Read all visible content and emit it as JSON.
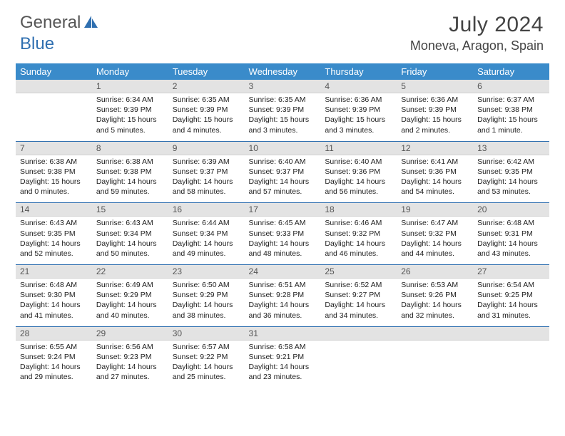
{
  "logo": {
    "part1": "General",
    "part2": "Blue"
  },
  "title": {
    "month": "July 2024",
    "location": "Moneva, Aragon, Spain"
  },
  "weekdays": [
    "Sunday",
    "Monday",
    "Tuesday",
    "Wednesday",
    "Thursday",
    "Friday",
    "Saturday"
  ],
  "colors": {
    "header_bg": "#3a8bca",
    "accent": "#2f6fb0",
    "daynum_bg": "#e3e3e3"
  },
  "weeks": [
    [
      {
        "n": "",
        "sunrise": "",
        "sunset": "",
        "daylight": ""
      },
      {
        "n": "1",
        "sunrise": "Sunrise: 6:34 AM",
        "sunset": "Sunset: 9:39 PM",
        "daylight": "Daylight: 15 hours and 5 minutes."
      },
      {
        "n": "2",
        "sunrise": "Sunrise: 6:35 AM",
        "sunset": "Sunset: 9:39 PM",
        "daylight": "Daylight: 15 hours and 4 minutes."
      },
      {
        "n": "3",
        "sunrise": "Sunrise: 6:35 AM",
        "sunset": "Sunset: 9:39 PM",
        "daylight": "Daylight: 15 hours and 3 minutes."
      },
      {
        "n": "4",
        "sunrise": "Sunrise: 6:36 AM",
        "sunset": "Sunset: 9:39 PM",
        "daylight": "Daylight: 15 hours and 3 minutes."
      },
      {
        "n": "5",
        "sunrise": "Sunrise: 6:36 AM",
        "sunset": "Sunset: 9:39 PM",
        "daylight": "Daylight: 15 hours and 2 minutes."
      },
      {
        "n": "6",
        "sunrise": "Sunrise: 6:37 AM",
        "sunset": "Sunset: 9:38 PM",
        "daylight": "Daylight: 15 hours and 1 minute."
      }
    ],
    [
      {
        "n": "7",
        "sunrise": "Sunrise: 6:38 AM",
        "sunset": "Sunset: 9:38 PM",
        "daylight": "Daylight: 15 hours and 0 minutes."
      },
      {
        "n": "8",
        "sunrise": "Sunrise: 6:38 AM",
        "sunset": "Sunset: 9:38 PM",
        "daylight": "Daylight: 14 hours and 59 minutes."
      },
      {
        "n": "9",
        "sunrise": "Sunrise: 6:39 AM",
        "sunset": "Sunset: 9:37 PM",
        "daylight": "Daylight: 14 hours and 58 minutes."
      },
      {
        "n": "10",
        "sunrise": "Sunrise: 6:40 AM",
        "sunset": "Sunset: 9:37 PM",
        "daylight": "Daylight: 14 hours and 57 minutes."
      },
      {
        "n": "11",
        "sunrise": "Sunrise: 6:40 AM",
        "sunset": "Sunset: 9:36 PM",
        "daylight": "Daylight: 14 hours and 56 minutes."
      },
      {
        "n": "12",
        "sunrise": "Sunrise: 6:41 AM",
        "sunset": "Sunset: 9:36 PM",
        "daylight": "Daylight: 14 hours and 54 minutes."
      },
      {
        "n": "13",
        "sunrise": "Sunrise: 6:42 AM",
        "sunset": "Sunset: 9:35 PM",
        "daylight": "Daylight: 14 hours and 53 minutes."
      }
    ],
    [
      {
        "n": "14",
        "sunrise": "Sunrise: 6:43 AM",
        "sunset": "Sunset: 9:35 PM",
        "daylight": "Daylight: 14 hours and 52 minutes."
      },
      {
        "n": "15",
        "sunrise": "Sunrise: 6:43 AM",
        "sunset": "Sunset: 9:34 PM",
        "daylight": "Daylight: 14 hours and 50 minutes."
      },
      {
        "n": "16",
        "sunrise": "Sunrise: 6:44 AM",
        "sunset": "Sunset: 9:34 PM",
        "daylight": "Daylight: 14 hours and 49 minutes."
      },
      {
        "n": "17",
        "sunrise": "Sunrise: 6:45 AM",
        "sunset": "Sunset: 9:33 PM",
        "daylight": "Daylight: 14 hours and 48 minutes."
      },
      {
        "n": "18",
        "sunrise": "Sunrise: 6:46 AM",
        "sunset": "Sunset: 9:32 PM",
        "daylight": "Daylight: 14 hours and 46 minutes."
      },
      {
        "n": "19",
        "sunrise": "Sunrise: 6:47 AM",
        "sunset": "Sunset: 9:32 PM",
        "daylight": "Daylight: 14 hours and 44 minutes."
      },
      {
        "n": "20",
        "sunrise": "Sunrise: 6:48 AM",
        "sunset": "Sunset: 9:31 PM",
        "daylight": "Daylight: 14 hours and 43 minutes."
      }
    ],
    [
      {
        "n": "21",
        "sunrise": "Sunrise: 6:48 AM",
        "sunset": "Sunset: 9:30 PM",
        "daylight": "Daylight: 14 hours and 41 minutes."
      },
      {
        "n": "22",
        "sunrise": "Sunrise: 6:49 AM",
        "sunset": "Sunset: 9:29 PM",
        "daylight": "Daylight: 14 hours and 40 minutes."
      },
      {
        "n": "23",
        "sunrise": "Sunrise: 6:50 AM",
        "sunset": "Sunset: 9:29 PM",
        "daylight": "Daylight: 14 hours and 38 minutes."
      },
      {
        "n": "24",
        "sunrise": "Sunrise: 6:51 AM",
        "sunset": "Sunset: 9:28 PM",
        "daylight": "Daylight: 14 hours and 36 minutes."
      },
      {
        "n": "25",
        "sunrise": "Sunrise: 6:52 AM",
        "sunset": "Sunset: 9:27 PM",
        "daylight": "Daylight: 14 hours and 34 minutes."
      },
      {
        "n": "26",
        "sunrise": "Sunrise: 6:53 AM",
        "sunset": "Sunset: 9:26 PM",
        "daylight": "Daylight: 14 hours and 32 minutes."
      },
      {
        "n": "27",
        "sunrise": "Sunrise: 6:54 AM",
        "sunset": "Sunset: 9:25 PM",
        "daylight": "Daylight: 14 hours and 31 minutes."
      }
    ],
    [
      {
        "n": "28",
        "sunrise": "Sunrise: 6:55 AM",
        "sunset": "Sunset: 9:24 PM",
        "daylight": "Daylight: 14 hours and 29 minutes."
      },
      {
        "n": "29",
        "sunrise": "Sunrise: 6:56 AM",
        "sunset": "Sunset: 9:23 PM",
        "daylight": "Daylight: 14 hours and 27 minutes."
      },
      {
        "n": "30",
        "sunrise": "Sunrise: 6:57 AM",
        "sunset": "Sunset: 9:22 PM",
        "daylight": "Daylight: 14 hours and 25 minutes."
      },
      {
        "n": "31",
        "sunrise": "Sunrise: 6:58 AM",
        "sunset": "Sunset: 9:21 PM",
        "daylight": "Daylight: 14 hours and 23 minutes."
      },
      {
        "n": "",
        "sunrise": "",
        "sunset": "",
        "daylight": ""
      },
      {
        "n": "",
        "sunrise": "",
        "sunset": "",
        "daylight": ""
      },
      {
        "n": "",
        "sunrise": "",
        "sunset": "",
        "daylight": ""
      }
    ]
  ]
}
